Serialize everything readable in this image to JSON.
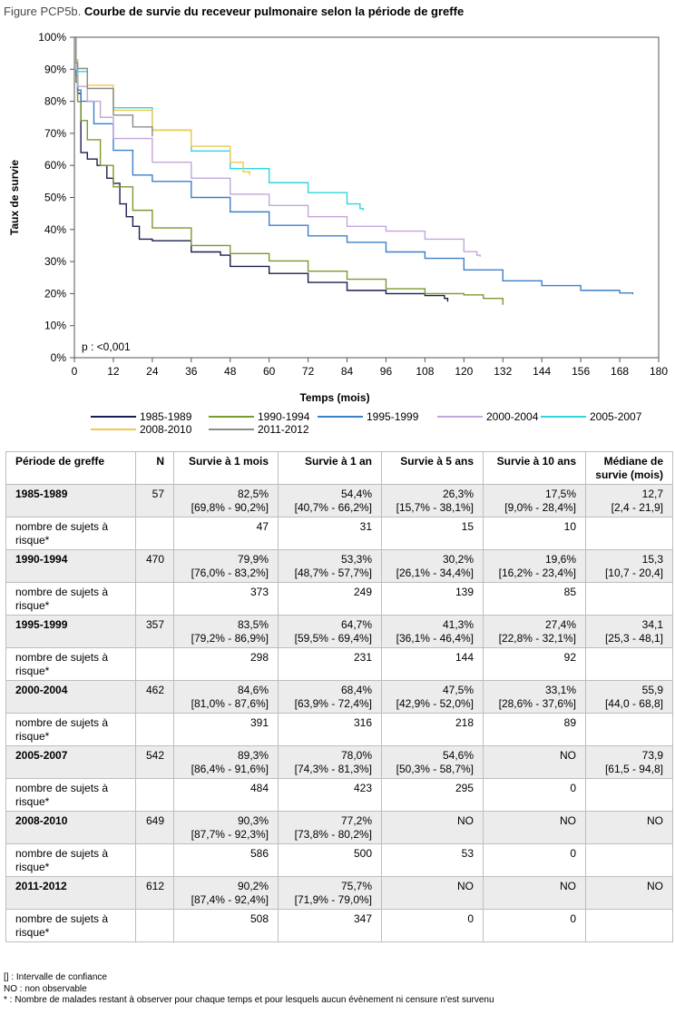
{
  "figure": {
    "label": "Figure PCP5b.",
    "title": "Courbe de survie du receveur pulmonaire selon la période de greffe"
  },
  "chart_data": {
    "type": "line",
    "xlabel": "Temps (mois)",
    "ylabel": "Taux de survie",
    "xlim": [
      0,
      180
    ],
    "ylim": [
      0,
      100
    ],
    "xticks": [
      "0",
      "12",
      "24",
      "36",
      "48",
      "60",
      "72",
      "84",
      "96",
      "108",
      "120",
      "132",
      "144",
      "156",
      "168",
      "180"
    ],
    "yticks": [
      "0%",
      "10%",
      "20%",
      "30%",
      "40%",
      "50%",
      "60%",
      "70%",
      "80%",
      "90%",
      "100%"
    ],
    "annotation": "p : <0,001",
    "grid": false,
    "legend_position": "bottom",
    "series": [
      {
        "name": "1985-1989",
        "color": "#1a1f4e",
        "points": [
          [
            0,
            100
          ],
          [
            0.5,
            88
          ],
          [
            1,
            82.5
          ],
          [
            2,
            64
          ],
          [
            4,
            62
          ],
          [
            7,
            60
          ],
          [
            10,
            56
          ],
          [
            12,
            54.4
          ],
          [
            14,
            48
          ],
          [
            16,
            44
          ],
          [
            18,
            41
          ],
          [
            20,
            37
          ],
          [
            24,
            36.5
          ],
          [
            36,
            33
          ],
          [
            45,
            32
          ],
          [
            48,
            28.5
          ],
          [
            60,
            26.3
          ],
          [
            72,
            23.5
          ],
          [
            84,
            21
          ],
          [
            96,
            20
          ],
          [
            108,
            19.4
          ],
          [
            114,
            18.5
          ],
          [
            115,
            17.5
          ]
        ]
      },
      {
        "name": "1990-1994",
        "color": "#7a9a2e",
        "points": [
          [
            0,
            100
          ],
          [
            0.5,
            86
          ],
          [
            1,
            79.9
          ],
          [
            2,
            74
          ],
          [
            4,
            68
          ],
          [
            8,
            60
          ],
          [
            12,
            53.3
          ],
          [
            18,
            46
          ],
          [
            24,
            40.5
          ],
          [
            36,
            35
          ],
          [
            48,
            32.5
          ],
          [
            60,
            30.2
          ],
          [
            72,
            27
          ],
          [
            84,
            24.5
          ],
          [
            96,
            21.5
          ],
          [
            108,
            20
          ],
          [
            120,
            19.6
          ],
          [
            126,
            18.5
          ],
          [
            132,
            16.5
          ]
        ]
      },
      {
        "name": "1995-1999",
        "color": "#3d7fc9",
        "points": [
          [
            0,
            100
          ],
          [
            0.5,
            89
          ],
          [
            1,
            83.5
          ],
          [
            2,
            80
          ],
          [
            6,
            73
          ],
          [
            12,
            64.7
          ],
          [
            18,
            57
          ],
          [
            24,
            55
          ],
          [
            36,
            50
          ],
          [
            48,
            45.5
          ],
          [
            60,
            41.3
          ],
          [
            72,
            38
          ],
          [
            84,
            36
          ],
          [
            96,
            33
          ],
          [
            108,
            31
          ],
          [
            120,
            27.4
          ],
          [
            132,
            24
          ],
          [
            144,
            22.5
          ],
          [
            156,
            21
          ],
          [
            168,
            20.2
          ],
          [
            172,
            19.8
          ]
        ]
      },
      {
        "name": "2000-2004",
        "color": "#c2a6da",
        "points": [
          [
            0,
            100
          ],
          [
            0.5,
            90
          ],
          [
            1,
            84.6
          ],
          [
            4,
            80
          ],
          [
            8,
            75
          ],
          [
            12,
            68.4
          ],
          [
            24,
            61
          ],
          [
            36,
            56
          ],
          [
            48,
            51
          ],
          [
            60,
            47.5
          ],
          [
            72,
            44
          ],
          [
            84,
            41
          ],
          [
            96,
            39.5
          ],
          [
            108,
            37
          ],
          [
            120,
            33.1
          ],
          [
            124,
            32
          ],
          [
            125,
            31.5
          ]
        ]
      },
      {
        "name": "2005-2007",
        "color": "#2fd5dc",
        "points": [
          [
            0,
            100
          ],
          [
            0.5,
            93
          ],
          [
            1,
            89.3
          ],
          [
            4,
            84
          ],
          [
            12,
            78
          ],
          [
            24,
            71
          ],
          [
            36,
            64.5
          ],
          [
            48,
            59
          ],
          [
            60,
            54.6
          ],
          [
            72,
            51.5
          ],
          [
            84,
            48
          ],
          [
            88,
            46.5
          ],
          [
            89,
            46
          ]
        ]
      },
      {
        "name": "2008-2010",
        "color": "#f0c84a",
        "points": [
          [
            0,
            100
          ],
          [
            0.5,
            93
          ],
          [
            1,
            90.3
          ],
          [
            4,
            85
          ],
          [
            12,
            77.2
          ],
          [
            24,
            71
          ],
          [
            36,
            66
          ],
          [
            48,
            61
          ],
          [
            52,
            58
          ],
          [
            54,
            57
          ]
        ]
      },
      {
        "name": "2011-2012",
        "color": "#8c8c8c",
        "points": [
          [
            0,
            100
          ],
          [
            0.5,
            92
          ],
          [
            1,
            90.2
          ],
          [
            4,
            84
          ],
          [
            12,
            75.7
          ],
          [
            18,
            72
          ],
          [
            24,
            69
          ]
        ]
      }
    ]
  },
  "table": {
    "headers": [
      "Période de greffe",
      "N",
      "Survie à 1 mois",
      "Survie à 1 an",
      "Survie à 5 ans",
      "Survie à 10 ans",
      "Médiane de survie (mois)"
    ],
    "rows": [
      {
        "period": "1985-1989",
        "n": "57",
        "m1": [
          "82,5%",
          "[69,8% - 90,2%]"
        ],
        "y1": [
          "54,4%",
          "[40,7% - 66,2%]"
        ],
        "y5": [
          "26,3%",
          "[15,7% - 38,1%]"
        ],
        "y10": [
          "17,5%",
          "[9,0% - 28,4%]"
        ],
        "median": [
          "12,7",
          "[2,4 - 21,9]"
        ],
        "risk_label": "nombre de sujets à risque*",
        "risk": [
          "47",
          "31",
          "15",
          "10"
        ]
      },
      {
        "period": "1990-1994",
        "n": "470",
        "m1": [
          "79,9%",
          "[76,0% - 83,2%]"
        ],
        "y1": [
          "53,3%",
          "[48,7% - 57,7%]"
        ],
        "y5": [
          "30,2%",
          "[26,1% - 34,4%]"
        ],
        "y10": [
          "19,6%",
          "[16,2% - 23,4%]"
        ],
        "median": [
          "15,3",
          "[10,7 - 20,4]"
        ],
        "risk_label": "nombre de sujets à risque*",
        "risk": [
          "373",
          "249",
          "139",
          "85"
        ]
      },
      {
        "period": "1995-1999",
        "n": "357",
        "m1": [
          "83,5%",
          "[79,2% - 86,9%]"
        ],
        "y1": [
          "64,7%",
          "[59,5% - 69,4%]"
        ],
        "y5": [
          "41,3%",
          "[36,1% - 46,4%]"
        ],
        "y10": [
          "27,4%",
          "[22,8% - 32,1%]"
        ],
        "median": [
          "34,1",
          "[25,3 - 48,1]"
        ],
        "risk_label": "nombre de sujets à risque*",
        "risk": [
          "298",
          "231",
          "144",
          "92"
        ]
      },
      {
        "period": "2000-2004",
        "n": "462",
        "m1": [
          "84,6%",
          "[81,0% - 87,6%]"
        ],
        "y1": [
          "68,4%",
          "[63,9% - 72,4%]"
        ],
        "y5": [
          "47,5%",
          "[42,9% - 52,0%]"
        ],
        "y10": [
          "33,1%",
          "[28,6% - 37,6%]"
        ],
        "median": [
          "55,9",
          "[44,0 - 68,8]"
        ],
        "risk_label": "nombre de sujets à risque*",
        "risk": [
          "391",
          "316",
          "218",
          "89"
        ]
      },
      {
        "period": "2005-2007",
        "n": "542",
        "m1": [
          "89,3%",
          "[86,4% - 91,6%]"
        ],
        "y1": [
          "78,0%",
          "[74,3% - 81,3%]"
        ],
        "y5": [
          "54,6%",
          "[50,3% - 58,7%]"
        ],
        "y10": [
          "NO",
          ""
        ],
        "median": [
          "73,9",
          "[61,5 - 94,8]"
        ],
        "risk_label": "nombre de sujets à risque*",
        "risk": [
          "484",
          "423",
          "295",
          "0"
        ]
      },
      {
        "period": "2008-2010",
        "n": "649",
        "m1": [
          "90,3%",
          "[87,7% - 92,3%]"
        ],
        "y1": [
          "77,2%",
          "[73,8% - 80,2%]"
        ],
        "y5": [
          "NO",
          ""
        ],
        "y10": [
          "NO",
          ""
        ],
        "median": [
          "NO",
          ""
        ],
        "risk_label": "nombre de sujets à risque*",
        "risk": [
          "586",
          "500",
          "53",
          "0"
        ]
      },
      {
        "period": "2011-2012",
        "n": "612",
        "m1": [
          "90,2%",
          "[87,4% - 92,4%]"
        ],
        "y1": [
          "75,7%",
          "[71,9% - 79,0%]"
        ],
        "y5": [
          "NO",
          ""
        ],
        "y10": [
          "NO",
          ""
        ],
        "median": [
          "NO",
          ""
        ],
        "risk_label": "nombre de sujets à risque*",
        "risk": [
          "508",
          "347",
          "0",
          "0"
        ]
      }
    ]
  },
  "notes": [
    "[] : Intervalle de confiance",
    "NO : non observable",
    "* : Nombre de malades restant à observer pour chaque temps et pour lesquels aucun évènement ni censure n'est survenu"
  ]
}
